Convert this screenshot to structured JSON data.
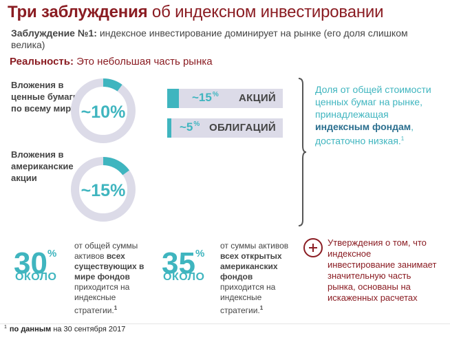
{
  "title": {
    "bold": "Три заблуждения",
    "rest": "об индексном инвестировании"
  },
  "misconception": {
    "label": "Заблуждение №1:",
    "text": "индексное инвестирование доминирует на рынке (его доля слишком велика)"
  },
  "reality": {
    "label": "Реальность:",
    "text": "Это небольшая часть рынка"
  },
  "rings": [
    {
      "label": "Вложения в ценные бумаги по всему миру",
      "value_text": "~10%",
      "fraction": 0.1
    },
    {
      "label": "Вложения в американские акции",
      "value_text": "~15%",
      "fraction": 0.15
    }
  ],
  "bars": [
    {
      "pct_value": "~15",
      "pct_sup": "%",
      "label": "АКЦИЙ",
      "fraction": 0.15
    },
    {
      "pct_value": "~5",
      "pct_sup": "%",
      "label": "ОБЛИГАЦИЙ",
      "fraction": 0.05
    }
  ],
  "note": {
    "pre": "Доля от общей стоимости ценных бумаг на рынке, принадлежащая",
    "bold": "индексным фондам",
    "post": ", достаточно низкая.",
    "sup": "1"
  },
  "stats": [
    {
      "value": "30",
      "sup": "%",
      "okolo": "ОКОЛО",
      "desc_pre": "от общей суммы активов",
      "desc_bold": "всех существующих в мире фондов",
      "desc_post": "приходится на индексные стратегии.",
      "desc_sup": "1"
    },
    {
      "value": "35",
      "sup": "%",
      "okolo": "ОКОЛО",
      "desc_pre": "от суммы активов",
      "desc_bold": "всех открытых американских фондов",
      "desc_post": "приходится на индексные стратегии.",
      "desc_sup": "1"
    }
  ],
  "claim": "Утверждения о том, что индексное инвестирование занимает значительную часть рынка, основаны на искаженных расчетах",
  "footnote": {
    "sup": "1",
    "bold": "по данным",
    "text": "на 30 сентября 2017"
  },
  "colors": {
    "brand_red": "#8a1c22",
    "teal": "#3fb5bf",
    "track": "#dcdbe8"
  }
}
